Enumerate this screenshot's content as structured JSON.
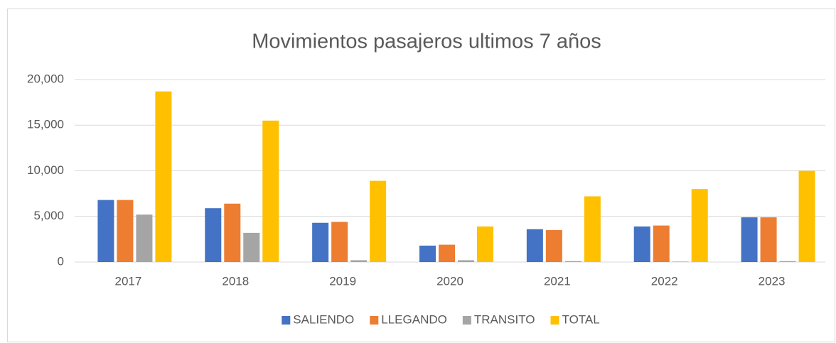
{
  "chart_data": {
    "type": "bar",
    "title": "Movimientos pasajeros ultimos 7 años",
    "categories": [
      "2017",
      "2018",
      "2019",
      "2020",
      "2021",
      "2022",
      "2023"
    ],
    "series": [
      {
        "name": "SALIENDO",
        "color": "#4472c4",
        "values": [
          6800,
          5900,
          4300,
          1800,
          3600,
          3900,
          4900
        ]
      },
      {
        "name": "LLEGANDO",
        "color": "#ed7d31",
        "values": [
          6800,
          6400,
          4400,
          1900,
          3500,
          4000,
          4900
        ]
      },
      {
        "name": "TRANSITO",
        "color": "#a5a5a5",
        "values": [
          5200,
          3200,
          200,
          200,
          100,
          50,
          100
        ]
      },
      {
        "name": "TOTAL",
        "color": "#ffc000",
        "values": [
          18700,
          15500,
          8900,
          3900,
          7200,
          8000,
          10000
        ]
      }
    ],
    "ylim": [
      0,
      20000
    ],
    "yticks": [
      0,
      {
        "value": 5000,
        "label": "5,000"
      },
      {
        "value": 10000,
        "label": "10,000"
      },
      {
        "value": 15000,
        "label": "15,000"
      },
      {
        "value": 20000,
        "label": "20,000"
      }
    ],
    "grid": true,
    "legend": "bottom"
  }
}
